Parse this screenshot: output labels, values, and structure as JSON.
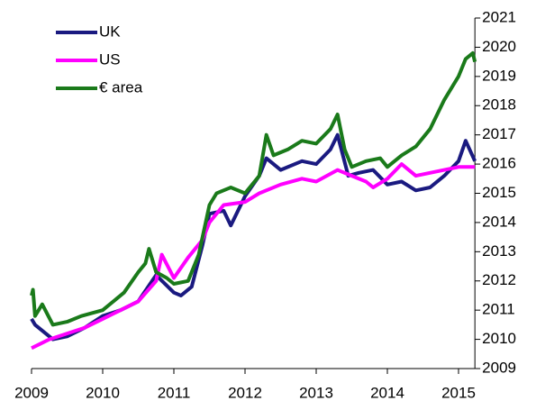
{
  "chart_data": {
    "type": "line",
    "legend_position": "upper left",
    "xlim": [
      2009,
      2015.23
    ],
    "xticks": [
      2009,
      2010,
      2011,
      2012,
      2013,
      2014,
      2015
    ],
    "ylim": [
      2009,
      2021
    ],
    "yticks": [
      2009,
      2010,
      2011,
      2012,
      2013,
      2014,
      2015,
      2016,
      2017,
      2018,
      2019,
      2020,
      2021
    ],
    "y_axis_side": "right",
    "series": [
      {
        "name": "UK",
        "color": "#1a1a80",
        "x": [
          2009.0,
          2009.05,
          2009.15,
          2009.3,
          2009.5,
          2009.75,
          2010.0,
          2010.25,
          2010.5,
          2010.75,
          2011.0,
          2011.1,
          2011.25,
          2011.4,
          2011.5,
          2011.7,
          2011.8,
          2012.0,
          2012.2,
          2012.3,
          2012.5,
          2012.8,
          2013.0,
          2013.2,
          2013.3,
          2013.45,
          2013.6,
          2013.8,
          2014.0,
          2014.2,
          2014.4,
          2014.6,
          2014.8,
          2015.0,
          2015.1,
          2015.23
        ],
        "values": [
          2010.7,
          2010.5,
          2010.3,
          2010.0,
          2010.1,
          2010.4,
          2010.8,
          2011.0,
          2011.3,
          2012.2,
          2011.6,
          2011.5,
          2011.8,
          2013.2,
          2014.3,
          2014.4,
          2013.9,
          2014.9,
          2015.6,
          2016.2,
          2015.8,
          2016.1,
          2016.0,
          2016.5,
          2017.0,
          2015.6,
          2015.7,
          2015.8,
          2015.3,
          2015.4,
          2015.1,
          2015.2,
          2015.6,
          2016.1,
          2016.8,
          2016.1
        ]
      },
      {
        "name": "US",
        "color": "#ff00ff",
        "x": [
          2009.0,
          2009.25,
          2009.5,
          2009.75,
          2010.0,
          2010.25,
          2010.5,
          2010.75,
          2010.83,
          2011.0,
          2011.2,
          2011.4,
          2011.5,
          2011.7,
          2012.0,
          2012.2,
          2012.5,
          2012.8,
          2013.0,
          2013.3,
          2013.5,
          2013.7,
          2013.8,
          2014.0,
          2014.2,
          2014.4,
          2014.6,
          2014.8,
          2015.0,
          2015.23
        ],
        "values": [
          2009.7,
          2010.0,
          2010.2,
          2010.4,
          2010.7,
          2011.0,
          2011.3,
          2012.0,
          2012.9,
          2012.1,
          2012.8,
          2013.4,
          2014.0,
          2014.6,
          2014.7,
          2015.0,
          2015.3,
          2015.5,
          2015.4,
          2015.8,
          2015.6,
          2015.4,
          2015.2,
          2015.5,
          2016.0,
          2015.6,
          2015.7,
          2015.8,
          2015.9,
          2015.9
        ]
      },
      {
        "name": "€ area",
        "color": "#1a7a1a",
        "x": [
          2009.0,
          2009.02,
          2009.05,
          2009.15,
          2009.3,
          2009.5,
          2009.7,
          2010.0,
          2010.3,
          2010.5,
          2010.6,
          2010.65,
          2010.75,
          2010.9,
          2011.0,
          2011.2,
          2011.35,
          2011.5,
          2011.6,
          2011.8,
          2012.0,
          2012.2,
          2012.3,
          2012.4,
          2012.6,
          2012.8,
          2013.0,
          2013.2,
          2013.3,
          2013.4,
          2013.5,
          2013.7,
          2013.9,
          2014.0,
          2014.2,
          2014.4,
          2014.6,
          2014.8,
          2015.0,
          2015.1,
          2015.2,
          2015.23
        ],
        "values": [
          2011.5,
          2011.7,
          2010.8,
          2011.2,
          2010.5,
          2010.6,
          2010.8,
          2011.0,
          2011.6,
          2012.3,
          2012.6,
          2013.1,
          2012.3,
          2012.1,
          2011.9,
          2012.0,
          2012.9,
          2014.6,
          2015.0,
          2015.2,
          2015.0,
          2015.6,
          2017.0,
          2016.3,
          2016.5,
          2016.8,
          2016.7,
          2017.2,
          2017.7,
          2016.5,
          2015.9,
          2016.1,
          2016.2,
          2015.9,
          2016.3,
          2016.6,
          2017.2,
          2018.2,
          2019.0,
          2019.6,
          2019.8,
          2019.5
        ]
      }
    ]
  }
}
